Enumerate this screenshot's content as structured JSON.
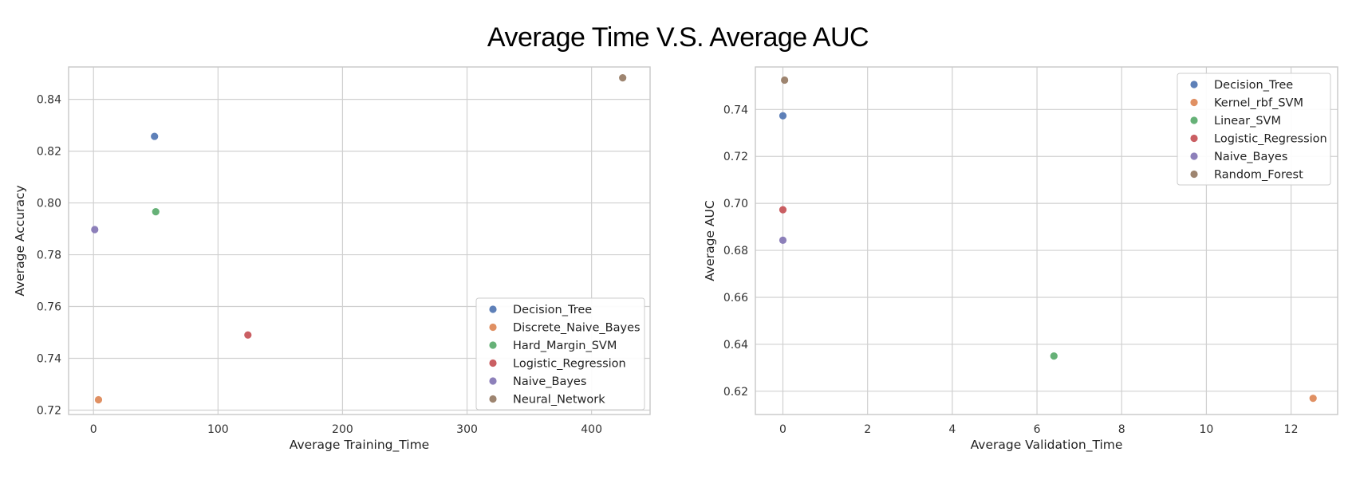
{
  "page": {
    "title": "Average Time V.S. Average AUC"
  },
  "chart_data": [
    {
      "type": "scatter",
      "xlabel": "Average Training_Time",
      "ylabel": "Average Accuracy",
      "xlim": [
        -20,
        447
      ],
      "ylim": [
        0.7183,
        0.8525
      ],
      "xticks": [
        0,
        100,
        200,
        300,
        400
      ],
      "xtick_labels": [
        "0",
        "100",
        "200",
        "300",
        "400"
      ],
      "yticks": [
        0.72,
        0.74,
        0.76,
        0.78,
        0.8,
        0.82,
        0.84
      ],
      "ytick_labels": [
        "0.72",
        "0.74",
        "0.76",
        "0.78",
        "0.80",
        "0.82",
        "0.84"
      ],
      "grid": true,
      "legend_position": "lower-right",
      "series": [
        {
          "name": "Decision_Tree",
          "color": "#4c72b0",
          "x": [
            49
          ],
          "y": [
            0.8257
          ]
        },
        {
          "name": "Discrete_Naive_Bayes",
          "color": "#dd8452",
          "x": [
            4
          ],
          "y": [
            0.724
          ]
        },
        {
          "name": "Hard_Margin_SVM",
          "color": "#55a868",
          "x": [
            50
          ],
          "y": [
            0.7966
          ]
        },
        {
          "name": "Logistic_Regression",
          "color": "#c44e52",
          "x": [
            124
          ],
          "y": [
            0.749
          ]
        },
        {
          "name": "Naive_Bayes",
          "color": "#8172b3",
          "x": [
            1
          ],
          "y": [
            0.7897
          ]
        },
        {
          "name": "Neural_Network",
          "color": "#937860",
          "x": [
            425
          ],
          "y": [
            0.8483
          ]
        }
      ]
    },
    {
      "type": "scatter",
      "xlabel": "Average Validation_Time",
      "ylabel": "Average AUC",
      "xlim": [
        -0.65,
        13.1
      ],
      "ylim": [
        0.6101,
        0.7581
      ],
      "xticks": [
        0,
        2,
        4,
        6,
        8,
        10,
        12
      ],
      "xtick_labels": [
        "0",
        "2",
        "4",
        "6",
        "8",
        "10",
        "12"
      ],
      "yticks": [
        0.62,
        0.64,
        0.66,
        0.68,
        0.7,
        0.72,
        0.74
      ],
      "ytick_labels": [
        "0.62",
        "0.64",
        "0.66",
        "0.68",
        "0.70",
        "0.72",
        "0.74"
      ],
      "grid": true,
      "legend_position": "upper-right",
      "series": [
        {
          "name": "Decision_Tree",
          "color": "#4c72b0",
          "x": [
            0.0
          ],
          "y": [
            0.7373
          ]
        },
        {
          "name": "Kernel_rbf_SVM",
          "color": "#dd8452",
          "x": [
            12.52
          ],
          "y": [
            0.617
          ]
        },
        {
          "name": "Linear_SVM",
          "color": "#55a868",
          "x": [
            6.4
          ],
          "y": [
            0.635
          ]
        },
        {
          "name": "Logistic_Regression",
          "color": "#c44e52",
          "x": [
            0.0
          ],
          "y": [
            0.6973
          ]
        },
        {
          "name": "Naive_Bayes",
          "color": "#8172b3",
          "x": [
            0.0
          ],
          "y": [
            0.6843
          ]
        },
        {
          "name": "Random_Forest",
          "color": "#937860",
          "x": [
            0.04
          ],
          "y": [
            0.7525
          ]
        }
      ]
    }
  ]
}
